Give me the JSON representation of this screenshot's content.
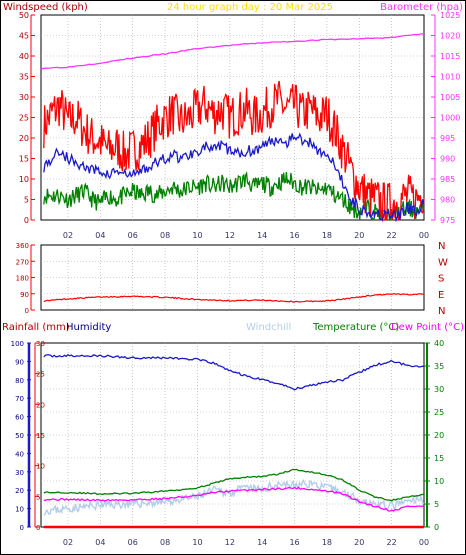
{
  "header": {
    "left_label": "Windspeed (kph)",
    "center_label": "24 hour graph day : 20 Mar 2025",
    "right_label": "Barometer (hpa)"
  },
  "colors": {
    "grid": "#a8a8a8",
    "axis": "#000000",
    "red": "#ff0000",
    "magenta": "#ff33ff",
    "blue": "#1a1acc",
    "green": "#008000",
    "lightblue": "#b4cdeb",
    "pink": "#ff00ff",
    "header_yellow": "#ffdd00",
    "dark_red": "#b00000"
  },
  "chart_data": [
    {
      "id": "wind",
      "type": "line",
      "title": "Windspeed (kph)",
      "ylabel_left": "Windspeed (kph)",
      "ylabel_right": "Barometer (hpa)",
      "x_ticks": [
        "02",
        "04",
        "06",
        "08",
        "10",
        "12",
        "14",
        "16",
        "18",
        "20",
        "22",
        "00"
      ],
      "y_left_ticks": [
        "0",
        "5",
        "10",
        "15",
        "20",
        "25",
        "30",
        "35",
        "40",
        "45",
        "50"
      ],
      "y_right_ticks": [
        "975",
        "980",
        "985",
        "990",
        "995",
        "1000",
        "1005",
        "1010",
        "1015",
        "1020",
        "1025"
      ],
      "ylim_left": [
        0,
        50
      ],
      "ylim_right": [
        975,
        1025
      ],
      "xlim": [
        0.33,
        24.0
      ],
      "grid": true,
      "series": [
        {
          "name": "Gust",
          "color": "red",
          "x": [
            0.5,
            1,
            1.5,
            2,
            2.5,
            3,
            3.5,
            4,
            4.5,
            5,
            5.5,
            6,
            6.5,
            7,
            7.5,
            8,
            8.5,
            9,
            9.5,
            10,
            10.5,
            11,
            11.5,
            12,
            12.5,
            13,
            13.5,
            14,
            14.5,
            15,
            15.5,
            16,
            16.5,
            17,
            17.5,
            18,
            18.5,
            19,
            19.5,
            20,
            20.5,
            21,
            21.5,
            22,
            22.5,
            23,
            23.5,
            24
          ],
          "values": [
            23,
            26,
            28,
            24,
            25,
            22,
            20,
            19,
            17,
            18,
            16,
            17,
            18,
            20,
            23,
            25,
            26,
            24,
            25,
            27,
            28,
            26,
            27,
            25,
            26,
            27,
            25,
            26,
            28,
            29,
            27,
            28,
            26,
            27,
            25,
            26,
            22,
            17,
            12,
            8,
            6,
            5,
            4,
            4,
            5,
            6,
            5,
            7
          ]
        },
        {
          "name": "Average",
          "color": "blue",
          "x": [
            0.5,
            1,
            1.5,
            2,
            2.5,
            3,
            3.5,
            4,
            4.5,
            5,
            5.5,
            6,
            6.5,
            7,
            7.5,
            8,
            8.5,
            9,
            9.5,
            10,
            10.5,
            11,
            11.5,
            12,
            12.5,
            13,
            13.5,
            14,
            14.5,
            15,
            15.5,
            16,
            16.5,
            17,
            17.5,
            18,
            18.5,
            19,
            19.5,
            20,
            20.5,
            21,
            21.5,
            22,
            22.5,
            23,
            23.5,
            24
          ],
          "values": [
            13,
            15,
            17,
            15,
            14,
            13,
            12,
            12,
            11,
            12,
            11,
            11,
            12,
            13,
            14,
            15,
            16,
            15,
            16,
            17,
            18,
            17,
            18,
            17,
            16,
            17,
            17,
            18,
            19,
            20,
            19,
            21,
            19,
            19,
            17,
            16,
            13,
            9,
            5,
            3,
            2,
            2,
            1,
            1,
            1,
            3,
            2,
            4
          ]
        },
        {
          "name": "Direction-bar",
          "color": "green",
          "x": [
            0.5,
            1,
            1.5,
            2,
            2.5,
            3,
            3.5,
            4,
            4.5,
            5,
            5.5,
            6,
            6.5,
            7,
            7.5,
            8,
            8.5,
            9,
            9.5,
            10,
            10.5,
            11,
            11.5,
            12,
            12.5,
            13,
            13.5,
            14,
            14.5,
            15,
            15.5,
            16,
            16.5,
            17,
            17.5,
            18,
            18.5,
            19,
            19.5,
            20,
            20.5,
            21,
            21.5,
            22,
            22.5,
            23,
            23.5,
            24
          ],
          "values": [
            6,
            6,
            6,
            5,
            6,
            7,
            5,
            4,
            6,
            5,
            6,
            7,
            6,
            7,
            6,
            7,
            8,
            7,
            8,
            8,
            9,
            8,
            9,
            8,
            9,
            10,
            8,
            9,
            8,
            9,
            10,
            9,
            8,
            8,
            7,
            8,
            6,
            5,
            3,
            2,
            3,
            2,
            1,
            1,
            2,
            3,
            2,
            3
          ]
        },
        {
          "name": "Barometer",
          "color": "magenta",
          "axis": "right",
          "x": [
            0.33,
            2,
            4,
            6,
            8,
            10,
            12,
            14,
            16,
            18,
            20,
            22,
            24
          ],
          "values": [
            1012.0,
            1012.3,
            1013.3,
            1014.5,
            1015.5,
            1016.8,
            1017.6,
            1018.2,
            1018.6,
            1019.0,
            1019.2,
            1019.5,
            1020.5
          ]
        }
      ]
    },
    {
      "id": "direction",
      "type": "line",
      "y_left_ticks": [
        "0",
        "90",
        "180",
        "270",
        "360"
      ],
      "y_right_ticks": [
        "N",
        "E",
        "S",
        "W",
        "N"
      ],
      "ylim": [
        0,
        360
      ],
      "xlim": [
        0.33,
        24.0
      ],
      "series": [
        {
          "name": "Wind direction",
          "color": "red",
          "x": [
            0.5,
            2,
            4,
            6,
            8,
            10,
            12,
            14,
            16,
            18,
            19,
            20,
            21,
            22,
            23,
            24
          ],
          "values": [
            50,
            62,
            72,
            76,
            70,
            58,
            52,
            55,
            46,
            50,
            60,
            72,
            84,
            88,
            86,
            90
          ]
        }
      ]
    },
    {
      "id": "temp",
      "type": "line",
      "labels": {
        "rainfall": "Rainfall (mm)",
        "humidity": "Humidity",
        "windchill": "Windchill",
        "temperature": "Temperature (°C)",
        "dew_point": "Dew Point (°C)"
      },
      "y_humidity_ticks": [
        "0",
        "10",
        "20",
        "30",
        "40",
        "50",
        "60",
        "70",
        "80",
        "90",
        "100"
      ],
      "y_rain_ticks": [
        "0",
        "5",
        "10",
        "15",
        "20",
        "25",
        "30"
      ],
      "y_temp_ticks": [
        "0",
        "5",
        "10",
        "15",
        "20",
        "25",
        "30",
        "35",
        "40"
      ],
      "x_ticks": [
        "02",
        "04",
        "06",
        "08",
        "10",
        "12",
        "14",
        "16",
        "18",
        "20",
        "22",
        "00"
      ],
      "ylim_humidity": [
        0,
        100
      ],
      "ylim_rain": [
        0,
        30
      ],
      "ylim_temp": [
        0,
        40
      ],
      "xlim": [
        0.33,
        24.0
      ],
      "series": [
        {
          "name": "Humidity",
          "color": "blue",
          "axis": "humidity",
          "x": [
            0.5,
            2,
            4,
            6,
            8,
            10,
            11,
            12,
            13,
            14,
            15,
            16,
            17,
            18,
            19,
            20,
            21,
            22,
            23,
            24
          ],
          "values": [
            93,
            93,
            93,
            92,
            92,
            91,
            89,
            85,
            82,
            80,
            78,
            75,
            77,
            79,
            80,
            84,
            88,
            90,
            88,
            87
          ]
        },
        {
          "name": "Temperature",
          "color": "green",
          "axis": "temp",
          "x": [
            0.5,
            2,
            4,
            6,
            8,
            10,
            11,
            12,
            13,
            14,
            15,
            16,
            17,
            18,
            19,
            20,
            21,
            22,
            23,
            24
          ],
          "values": [
            7.5,
            7.5,
            7.2,
            7.3,
            7.8,
            8.5,
            9.5,
            10.5,
            10.8,
            11.0,
            11.5,
            12.5,
            12.0,
            11.3,
            10.2,
            8.0,
            6.5,
            5.8,
            6.5,
            7.0
          ]
        },
        {
          "name": "Windchill",
          "color": "lightblue",
          "axis": "temp",
          "x": [
            0.5,
            2,
            4,
            6,
            8,
            10,
            11,
            12,
            13,
            14,
            15,
            16,
            17,
            18,
            19,
            20,
            21,
            22,
            23,
            24
          ],
          "values": [
            3.5,
            4.0,
            4.8,
            5.0,
            5.5,
            6.5,
            8.0,
            7.5,
            8.5,
            8.0,
            9.5,
            9.0,
            9.5,
            8.5,
            7.5,
            6.0,
            5.0,
            4.5,
            5.5,
            6.0
          ]
        },
        {
          "name": "Dew Point",
          "color": "pink",
          "axis": "temp",
          "x": [
            0.5,
            2,
            4,
            6,
            8,
            10,
            11,
            12,
            13,
            14,
            15,
            16,
            17,
            18,
            19,
            20,
            21,
            22,
            23,
            24
          ],
          "values": [
            6.0,
            6.0,
            5.8,
            5.9,
            6.2,
            6.8,
            7.5,
            7.8,
            8.0,
            8.2,
            8.3,
            8.5,
            8.2,
            7.8,
            7.2,
            5.5,
            4.5,
            3.5,
            4.5,
            4.5
          ]
        },
        {
          "name": "Rainfall",
          "color": "red",
          "axis": "rain",
          "x": [
            0.5,
            24
          ],
          "values": [
            0,
            0
          ]
        }
      ]
    }
  ]
}
